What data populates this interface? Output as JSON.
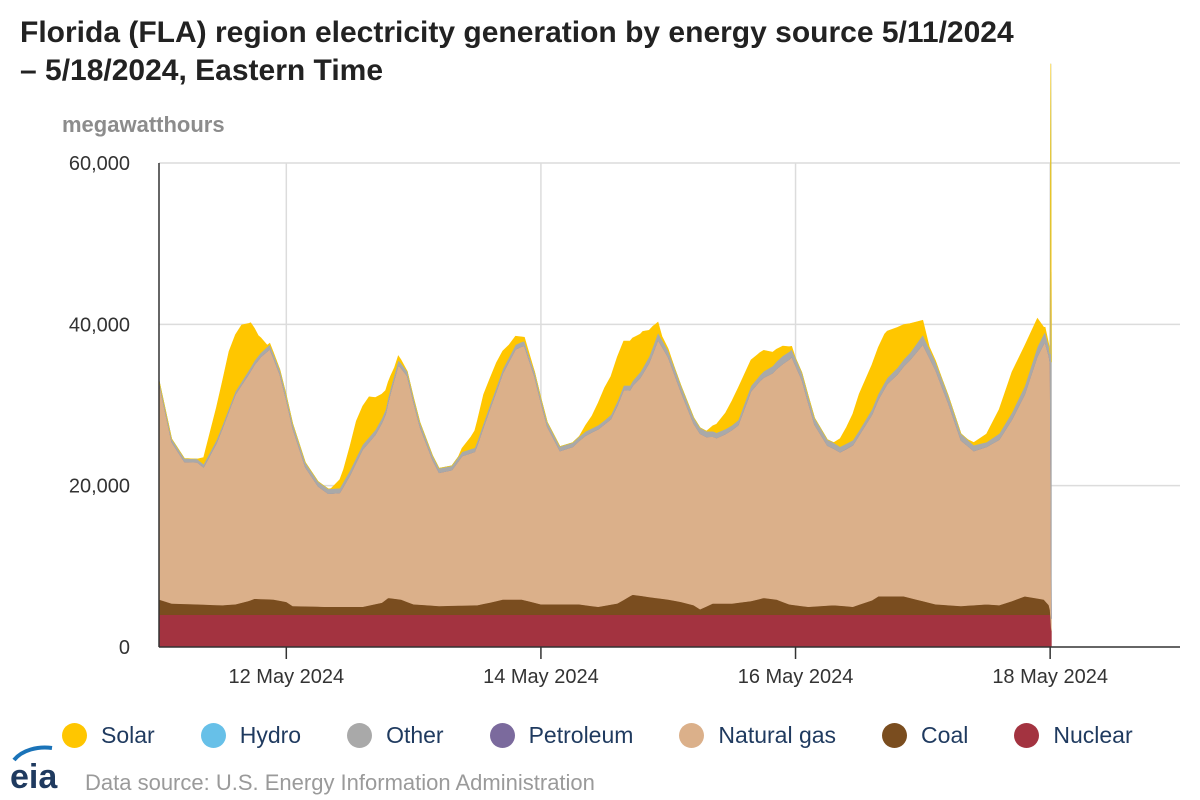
{
  "title_line1": "Florida (FLA) region electricity generation by energy source 5/11/2024",
  "title_line2": "– 5/18/2024, Eastern Time",
  "source": "Data source: U.S. Energy Information Administration",
  "logo_text": "eia",
  "chart_data": {
    "type": "area",
    "stacked": true,
    "title": "Florida (FLA) region electricity generation by energy source 5/11/2024 – 5/18/2024, Eastern Time",
    "ylabel": "megawatthours",
    "xlabel": "",
    "ylim": [
      0,
      60000
    ],
    "y_ticks": [
      {
        "value": 0,
        "label": "0"
      },
      {
        "value": 20000,
        "label": "20,000"
      },
      {
        "value": 40000,
        "label": "40,000"
      },
      {
        "value": 60000,
        "label": "60,000"
      }
    ],
    "x_range_days": [
      0,
      8.02
    ],
    "x_ticks": [
      {
        "value": 1,
        "label": "12 May 2024"
      },
      {
        "value": 3,
        "label": "14 May 2024"
      },
      {
        "value": 5,
        "label": "16 May 2024"
      },
      {
        "value": 7,
        "label": "18 May 2024"
      }
    ],
    "x_unit": "days since 5/11/2024 00:00",
    "grid": true,
    "legend_position": "bottom",
    "series": [
      {
        "name": "Nuclear",
        "color": "#a33340",
        "points": [
          [
            0,
            4000
          ],
          [
            7,
            4000
          ],
          [
            7.01,
            2000
          ]
        ]
      },
      {
        "name": "Coal",
        "color": "#7a4d1f",
        "points": [
          [
            0,
            1900
          ],
          [
            0.1,
            1400
          ],
          [
            0.3,
            1300
          ],
          [
            0.5,
            1200
          ],
          [
            0.6,
            1300
          ],
          [
            0.7,
            1700
          ],
          [
            0.75,
            2000
          ],
          [
            0.9,
            1900
          ],
          [
            1.0,
            1600
          ],
          [
            1.05,
            1100
          ],
          [
            1.3,
            1000
          ],
          [
            1.6,
            1000
          ],
          [
            1.75,
            1500
          ],
          [
            1.8,
            2100
          ],
          [
            1.9,
            1900
          ],
          [
            2.0,
            1300
          ],
          [
            2.2,
            1100
          ],
          [
            2.5,
            1200
          ],
          [
            2.65,
            1700
          ],
          [
            2.7,
            1900
          ],
          [
            2.85,
            1900
          ],
          [
            3.0,
            1300
          ],
          [
            3.3,
            1300
          ],
          [
            3.45,
            1000
          ],
          [
            3.6,
            1400
          ],
          [
            3.72,
            2500
          ],
          [
            3.9,
            2100
          ],
          [
            4.0,
            1900
          ],
          [
            4.1,
            1600
          ],
          [
            4.2,
            1200
          ],
          [
            4.25,
            700
          ],
          [
            4.35,
            1400
          ],
          [
            4.5,
            1400
          ],
          [
            4.65,
            1700
          ],
          [
            4.75,
            2100
          ],
          [
            4.85,
            1900
          ],
          [
            4.95,
            1300
          ],
          [
            5.1,
            1000
          ],
          [
            5.3,
            1200
          ],
          [
            5.45,
            1000
          ],
          [
            5.6,
            1800
          ],
          [
            5.65,
            2300
          ],
          [
            5.85,
            2300
          ],
          [
            5.95,
            1900
          ],
          [
            6.1,
            1300
          ],
          [
            6.3,
            1100
          ],
          [
            6.5,
            1300
          ],
          [
            6.6,
            1200
          ],
          [
            6.7,
            1700
          ],
          [
            6.8,
            2300
          ],
          [
            6.95,
            1900
          ],
          [
            6.99,
            1200
          ],
          [
            7.01,
            0
          ]
        ]
      },
      {
        "name": "Natural gas",
        "color": "#dbb08a",
        "points": [
          [
            0,
            26800
          ],
          [
            0.1,
            20000
          ],
          [
            0.2,
            17600
          ],
          [
            0.3,
            17600
          ],
          [
            0.35,
            17000
          ],
          [
            0.45,
            20000
          ],
          [
            0.6,
            26000
          ],
          [
            0.7,
            28000
          ],
          [
            0.8,
            30000
          ],
          [
            0.87,
            31000
          ],
          [
            0.95,
            28000
          ],
          [
            1.05,
            22000
          ],
          [
            1.15,
            17200
          ],
          [
            1.25,
            14900
          ],
          [
            1.33,
            14000
          ],
          [
            1.42,
            14100
          ],
          [
            1.5,
            16300
          ],
          [
            1.6,
            19500
          ],
          [
            1.7,
            21000
          ],
          [
            1.78,
            23000
          ],
          [
            1.82,
            25500
          ],
          [
            1.88,
            29000
          ],
          [
            1.95,
            28000
          ],
          [
            2.05,
            22000
          ],
          [
            2.15,
            18000
          ],
          [
            2.2,
            16500
          ],
          [
            2.3,
            16800
          ],
          [
            2.38,
            18500
          ],
          [
            2.48,
            19000
          ],
          [
            2.6,
            24000
          ],
          [
            2.7,
            28000
          ],
          [
            2.8,
            31000
          ],
          [
            2.87,
            31500
          ],
          [
            2.95,
            28000
          ],
          [
            3.05,
            22000
          ],
          [
            3.15,
            19000
          ],
          [
            3.25,
            19500
          ],
          [
            3.35,
            21000
          ],
          [
            3.45,
            22000
          ],
          [
            3.55,
            23000
          ],
          [
            3.65,
            26000
          ],
          [
            3.7,
            25500
          ],
          [
            3.78,
            27000
          ],
          [
            3.85,
            29000
          ],
          [
            3.92,
            32000
          ],
          [
            4.0,
            30000
          ],
          [
            4.1,
            26000
          ],
          [
            4.2,
            22500
          ],
          [
            4.3,
            21000
          ],
          [
            4.38,
            20500
          ],
          [
            4.45,
            21000
          ],
          [
            4.55,
            22000
          ],
          [
            4.65,
            26000
          ],
          [
            4.72,
            27000
          ],
          [
            4.82,
            28000
          ],
          [
            4.9,
            29500
          ],
          [
            4.97,
            30700
          ],
          [
            5.05,
            28000
          ],
          [
            5.15,
            22500
          ],
          [
            5.25,
            19800
          ],
          [
            5.35,
            19000
          ],
          [
            5.45,
            20000
          ],
          [
            5.6,
            23000
          ],
          [
            5.72,
            26300
          ],
          [
            5.8,
            27500
          ],
          [
            5.9,
            29500
          ],
          [
            6.0,
            31800
          ],
          [
            6.1,
            29000
          ],
          [
            6.2,
            25000
          ],
          [
            6.3,
            20500
          ],
          [
            6.4,
            19100
          ],
          [
            6.5,
            19500
          ],
          [
            6.6,
            20500
          ],
          [
            6.7,
            22500
          ],
          [
            6.8,
            25000
          ],
          [
            6.9,
            30000
          ],
          [
            6.96,
            32000
          ],
          [
            7.0,
            30500
          ],
          [
            7.01,
            1500
          ]
        ]
      },
      {
        "name": "Petroleum",
        "color": "#7b6a9d",
        "points": [
          [
            0,
            0
          ],
          [
            7,
            0
          ]
        ]
      },
      {
        "name": "Other",
        "color": "#a9a9a9",
        "points": [
          [
            0,
            400
          ],
          [
            0.6,
            400
          ],
          [
            0.9,
            600
          ],
          [
            1.5,
            600
          ],
          [
            1.9,
            600
          ],
          [
            2.5,
            500
          ],
          [
            2.9,
            600
          ],
          [
            3.5,
            500
          ],
          [
            3.7,
            600
          ],
          [
            3.92,
            900
          ],
          [
            4.5,
            600
          ],
          [
            4.7,
            700
          ],
          [
            4.9,
            1000
          ],
          [
            5.5,
            600
          ],
          [
            5.9,
            900
          ],
          [
            6.0,
            1200
          ],
          [
            6.5,
            600
          ],
          [
            6.9,
            1200
          ],
          [
            6.97,
            1300
          ],
          [
            7.0,
            1200
          ],
          [
            7.005,
            53000
          ],
          [
            7.01,
            31800
          ]
        ]
      },
      {
        "name": "Hydro",
        "color": "#67c0e8",
        "points": [
          [
            0,
            0
          ],
          [
            7,
            0
          ]
        ]
      },
      {
        "name": "Solar",
        "color": "#ffc600",
        "points": [
          [
            0,
            0
          ],
          [
            0.3,
            0
          ],
          [
            0.35,
            800
          ],
          [
            0.45,
            4000
          ],
          [
            0.55,
            7000
          ],
          [
            0.65,
            7000
          ],
          [
            0.72,
            5500
          ],
          [
            0.78,
            2500
          ],
          [
            0.85,
            200
          ],
          [
            0.95,
            0
          ],
          [
            1.35,
            0
          ],
          [
            1.45,
            1500
          ],
          [
            1.55,
            4500
          ],
          [
            1.65,
            5000
          ],
          [
            1.75,
            3000
          ],
          [
            1.85,
            800
          ],
          [
            1.95,
            0
          ],
          [
            2.35,
            0
          ],
          [
            2.45,
            1500
          ],
          [
            2.55,
            3500
          ],
          [
            2.65,
            3000
          ],
          [
            2.75,
            1500
          ],
          [
            2.85,
            600
          ],
          [
            2.95,
            0
          ],
          [
            3.3,
            0
          ],
          [
            3.4,
            1500
          ],
          [
            3.5,
            4000
          ],
          [
            3.6,
            5500
          ],
          [
            3.65,
            5500
          ],
          [
            3.7,
            5500
          ],
          [
            3.8,
            4500
          ],
          [
            3.88,
            2500
          ],
          [
            3.95,
            400
          ],
          [
            4.05,
            0
          ],
          [
            4.3,
            0
          ],
          [
            4.45,
            2000
          ],
          [
            4.55,
            4000
          ],
          [
            4.65,
            3200
          ],
          [
            4.75,
            2600
          ],
          [
            4.82,
            1700
          ],
          [
            4.9,
            1200
          ],
          [
            5.0,
            0
          ],
          [
            5.3,
            0
          ],
          [
            5.4,
            2000
          ],
          [
            5.5,
            4500
          ],
          [
            5.6,
            5500
          ],
          [
            5.7,
            6000
          ],
          [
            5.8,
            5000
          ],
          [
            5.9,
            3600
          ],
          [
            6.0,
            1800
          ],
          [
            6.05,
            200
          ],
          [
            6.15,
            0
          ],
          [
            6.35,
            0
          ],
          [
            6.5,
            1000
          ],
          [
            6.6,
            3000
          ],
          [
            6.7,
            5000
          ],
          [
            6.8,
            5000
          ],
          [
            6.9,
            3500
          ],
          [
            6.95,
            800
          ],
          [
            7.0,
            0
          ],
          [
            7.01,
            0
          ]
        ]
      }
    ]
  }
}
